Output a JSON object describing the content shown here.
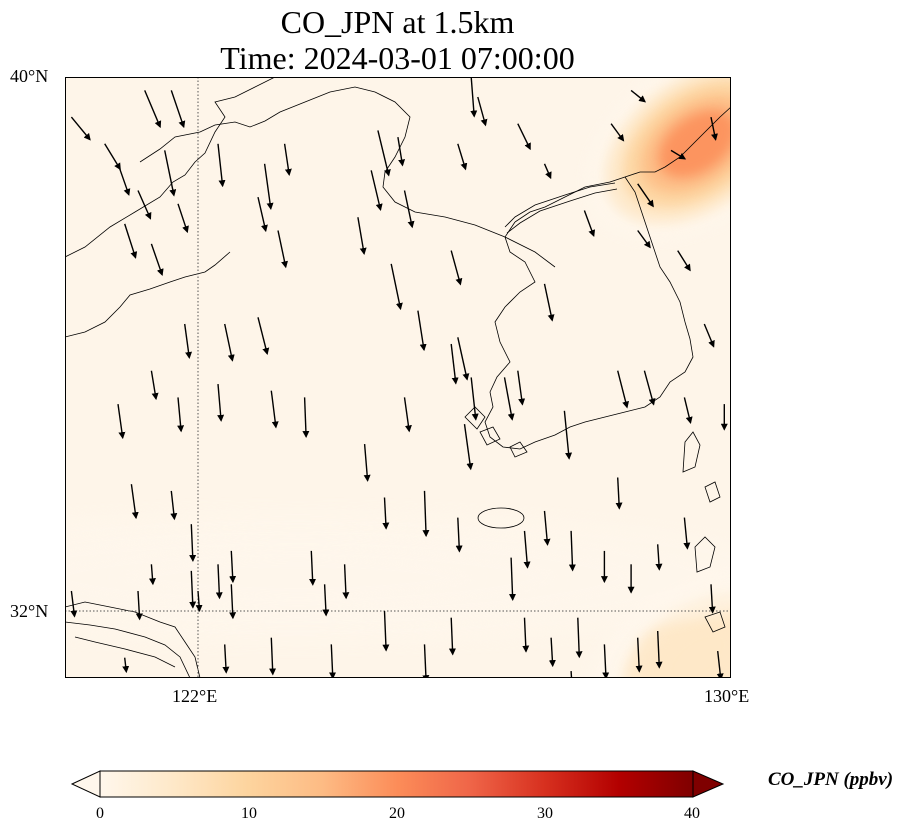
{
  "title": {
    "line1": "CO_JPN at 1.5km",
    "line2": "Time: 2024-03-01 07:00:00"
  },
  "axes": {
    "lat_labels": [
      "40°N",
      "32°N"
    ],
    "lon_labels": [
      "122°E",
      "130°E"
    ],
    "lon_range": [
      120,
      130
    ],
    "lat_range": [
      31,
      40
    ],
    "gridlines": {
      "lons": [
        122
      ],
      "lats": [
        32
      ],
      "style": "dotted"
    }
  },
  "colorbar": {
    "label": "CO_JPN (ppbv)",
    "ticks": [
      "0",
      "10",
      "20",
      "30",
      "40"
    ],
    "range": [
      0,
      40
    ],
    "extend": "both",
    "colormap": "OrRd",
    "colors": [
      "#fff7ec",
      "#fee8c8",
      "#fdd49e",
      "#fdbb84",
      "#fc8d59",
      "#ef6548",
      "#d7301f",
      "#b30000",
      "#7f0000"
    ]
  },
  "field": {
    "background_value": 1,
    "plumes": [
      {
        "name": "northeast plume",
        "lon": 129.5,
        "lat": 39.0,
        "peak_ppbv": 20
      },
      {
        "name": "southeast plume",
        "lon": 129.5,
        "lat": 31.3,
        "peak_ppbv": 9
      },
      {
        "name": "southern band",
        "lon": 123.5,
        "lat": 32.5,
        "peak_ppbv": 4
      }
    ]
  },
  "wind_vectors": [
    [
      120.1,
      39.4,
      1.2,
      -0.8
    ],
    [
      120.6,
      39.0,
      1.0,
      -0.9
    ],
    [
      120.8,
      38.7,
      0.7,
      -1.1
    ],
    [
      121.2,
      39.8,
      1.0,
      -1.3
    ],
    [
      121.6,
      39.8,
      0.8,
      -1.3
    ],
    [
      121.5,
      38.9,
      0.6,
      -1.6
    ],
    [
      121.1,
      38.3,
      0.8,
      -1.0
    ],
    [
      120.9,
      37.8,
      0.7,
      -1.2
    ],
    [
      121.3,
      37.5,
      0.7,
      -1.1
    ],
    [
      121.7,
      38.1,
      0.6,
      -1.0
    ],
    [
      122.3,
      39.0,
      0.3,
      -1.5
    ],
    [
      123.0,
      38.7,
      0.4,
      -1.6
    ],
    [
      123.3,
      39.0,
      0.3,
      -1.1
    ],
    [
      122.9,
      38.2,
      0.5,
      -1.2
    ],
    [
      123.2,
      37.7,
      0.5,
      -1.3
    ],
    [
      124.7,
      39.2,
      0.7,
      -1.6
    ],
    [
      124.6,
      38.6,
      0.6,
      -1.4
    ],
    [
      125.0,
      39.1,
      0.3,
      -1.0
    ],
    [
      125.1,
      38.3,
      0.5,
      -1.3
    ],
    [
      124.4,
      37.9,
      0.4,
      -1.3
    ],
    [
      124.9,
      37.2,
      0.6,
      -1.6
    ],
    [
      125.8,
      37.4,
      0.6,
      -1.2
    ],
    [
      125.9,
      39.0,
      0.5,
      -0.9
    ],
    [
      126.1,
      40.0,
      0.2,
      -1.4
    ],
    [
      126.2,
      39.7,
      0.5,
      -1.0
    ],
    [
      126.8,
      39.3,
      0.8,
      -0.9
    ],
    [
      128.2,
      39.3,
      0.8,
      -0.6
    ],
    [
      127.2,
      38.7,
      0.4,
      -0.5
    ],
    [
      127.8,
      38.0,
      0.6,
      -0.9
    ],
    [
      128.6,
      38.4,
      1.0,
      -0.8
    ],
    [
      128.6,
      37.7,
      0.8,
      -0.6
    ],
    [
      129.2,
      37.4,
      0.8,
      -0.7
    ],
    [
      129.1,
      38.9,
      0.9,
      -0.3
    ],
    [
      129.7,
      39.4,
      0.3,
      -0.8
    ],
    [
      128.5,
      39.8,
      0.9,
      -0.4
    ],
    [
      130.0,
      37.9,
      0.5,
      -0.4
    ],
    [
      129.6,
      36.3,
      0.6,
      -0.8
    ],
    [
      129.3,
      35.2,
      0.4,
      -0.9
    ],
    [
      129.9,
      35.1,
      0.0,
      -0.9
    ],
    [
      128.3,
      35.6,
      0.6,
      -1.3
    ],
    [
      128.7,
      35.6,
      0.6,
      -1.2
    ],
    [
      127.5,
      35.0,
      0.3,
      -1.7
    ],
    [
      127.2,
      36.9,
      0.5,
      -1.3
    ],
    [
      126.8,
      35.6,
      0.3,
      -1.2
    ],
    [
      126.6,
      35.5,
      0.5,
      -1.5
    ],
    [
      125.3,
      36.5,
      0.4,
      -1.4
    ],
    [
      125.9,
      36.1,
      0.6,
      -1.5
    ],
    [
      126.1,
      35.5,
      0.3,
      -1.5
    ],
    [
      126.0,
      34.8,
      0.4,
      -1.6
    ],
    [
      125.8,
      36.0,
      0.3,
      -1.4
    ],
    [
      120.8,
      35.1,
      0.3,
      -1.2
    ],
    [
      121.3,
      35.6,
      0.3,
      -1.0
    ],
    [
      121.7,
      35.2,
      0.2,
      -1.2
    ],
    [
      122.3,
      35.4,
      0.2,
      -1.3
    ],
    [
      123.1,
      35.3,
      0.3,
      -1.3
    ],
    [
      121.8,
      36.3,
      0.3,
      -1.2
    ],
    [
      122.4,
      36.3,
      0.5,
      -1.3
    ],
    [
      122.9,
      36.4,
      0.6,
      -1.3
    ],
    [
      123.6,
      35.2,
      0.1,
      -1.4
    ],
    [
      124.5,
      34.5,
      0.2,
      -1.3
    ],
    [
      124.8,
      33.7,
      0.1,
      -1.1
    ],
    [
      125.4,
      33.8,
      0.1,
      -1.6
    ],
    [
      125.9,
      33.4,
      0.1,
      -1.2
    ],
    [
      126.9,
      33.2,
      0.2,
      -1.3
    ],
    [
      127.2,
      33.5,
      0.2,
      -1.2
    ],
    [
      126.7,
      32.8,
      0.1,
      -1.5
    ],
    [
      127.6,
      33.2,
      0.1,
      -1.4
    ],
    [
      128.3,
      34.0,
      0.1,
      -1.1
    ],
    [
      129.3,
      33.4,
      0.2,
      -1.1
    ],
    [
      129.7,
      32.4,
      0.1,
      -1.0
    ],
    [
      121.9,
      33.3,
      0.1,
      -1.3
    ],
    [
      122.5,
      32.9,
      0.1,
      -1.1
    ],
    [
      122.5,
      32.4,
      0.1,
      -1.2
    ],
    [
      121.9,
      32.6,
      0.1,
      -1.3
    ],
    [
      121.3,
      32.7,
      0.1,
      -0.7
    ],
    [
      120.1,
      32.3,
      0.2,
      -0.9
    ],
    [
      121.1,
      32.3,
      0.1,
      -1.0
    ],
    [
      122.0,
      32.3,
      0.1,
      -0.7
    ],
    [
      122.3,
      32.7,
      0.1,
      -1.2
    ],
    [
      123.7,
      32.9,
      0.1,
      -1.2
    ],
    [
      124.2,
      32.7,
      0.1,
      -1.2
    ],
    [
      123.9,
      32.4,
      0.1,
      -1.1
    ],
    [
      124.8,
      32.0,
      0.1,
      -1.4
    ],
    [
      125.8,
      31.9,
      0.1,
      -1.3
    ],
    [
      126.9,
      31.9,
      0.1,
      -1.2
    ],
    [
      127.7,
      31.9,
      0.1,
      -1.4
    ],
    [
      128.1,
      31.5,
      0.1,
      -1.2
    ],
    [
      128.6,
      31.6,
      0.1,
      -1.2
    ],
    [
      128.9,
      31.7,
      0.1,
      -1.3
    ],
    [
      127.3,
      31.6,
      0.1,
      -1.0
    ],
    [
      128.1,
      32.9,
      0.0,
      -1.1
    ],
    [
      128.5,
      32.7,
      0.0,
      -1.0
    ],
    [
      128.9,
      33.0,
      0.1,
      -0.9
    ],
    [
      122.4,
      31.5,
      0.1,
      -1.0
    ],
    [
      123.1,
      31.6,
      0.1,
      -1.3
    ],
    [
      124.0,
      31.5,
      0.1,
      -1.2
    ],
    [
      125.4,
      31.5,
      0.1,
      -1.3
    ],
    [
      126.1,
      31.0,
      0.1,
      -1.2
    ],
    [
      127.6,
      31.1,
      0.1,
      -0.9
    ],
    [
      129.8,
      31.4,
      0.2,
      -1.0
    ],
    [
      129.7,
      30.9,
      0.2,
      -0.9
    ],
    [
      126.5,
      30.9,
      0.1,
      -1.1
    ],
    [
      126.8,
      30.9,
      0.0,
      -1.2
    ],
    [
      122.1,
      30.9,
      0.1,
      -0.8
    ],
    [
      120.3,
      31.0,
      0.2,
      -0.7
    ],
    [
      121.0,
      30.9,
      0.1,
      -0.6
    ],
    [
      120.9,
      31.3,
      0.1,
      -0.5
    ],
    [
      121.0,
      33.9,
      0.3,
      -1.2
    ],
    [
      121.6,
      33.8,
      0.2,
      -1.0
    ],
    [
      125.1,
      35.2,
      0.3,
      -1.2
    ]
  ]
}
